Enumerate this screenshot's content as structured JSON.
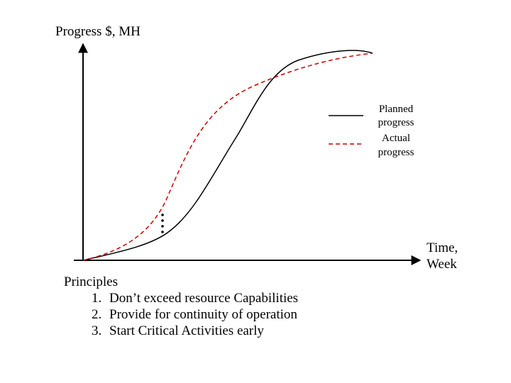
{
  "axes": {
    "y_label": "Progress $, MH",
    "x_label_line1": "Time,",
    "x_label_line2": "Week"
  },
  "legend": {
    "planned_line1": "Planned",
    "planned_line2": "progress",
    "actual_line1": "Actual",
    "actual_line2": "progress"
  },
  "colors": {
    "planned": "#000000",
    "actual": "#cc0000"
  },
  "principles": {
    "heading": "Principles",
    "items": [
      "Don’t exceed resource Capabilities",
      "Provide for continuity of operation",
      "Start Critical Activities early"
    ]
  }
}
